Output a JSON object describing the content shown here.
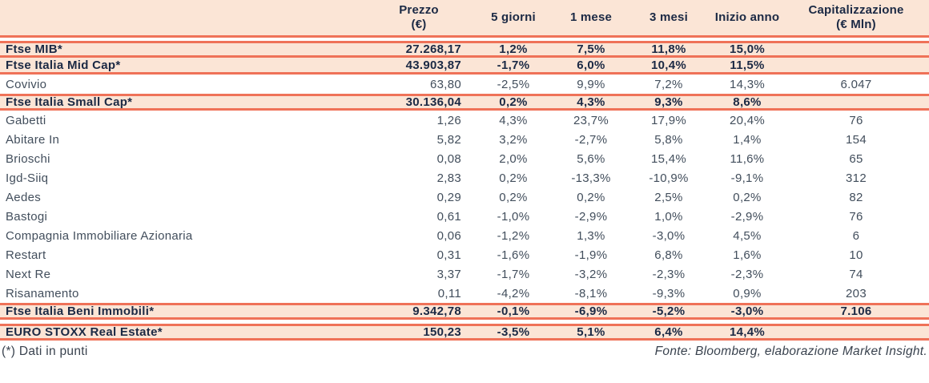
{
  "chart_data": {
    "type": "table",
    "columns": [
      "",
      "Prezzo\n(€)",
      "5 giorni",
      "1 mese",
      "3 mesi",
      "Inizio anno",
      "Capitalizzazione\n(€ Mln)"
    ],
    "rows": [
      {
        "label": "Ftse MIB*",
        "kind": "index",
        "values": [
          "27.268,17",
          "1,2%",
          "7,5%",
          "11,8%",
          "15,0%",
          ""
        ]
      },
      {
        "label": "Ftse Italia Mid Cap*",
        "kind": "index",
        "values": [
          "43.903,87",
          "-1,7%",
          "6,0%",
          "10,4%",
          "11,5%",
          ""
        ]
      },
      {
        "label": "Covivio",
        "kind": "stock",
        "values": [
          "63,80",
          "-2,5%",
          "9,9%",
          "7,2%",
          "14,3%",
          "6.047"
        ]
      },
      {
        "label": "Ftse Italia Small Cap*",
        "kind": "index",
        "values": [
          "30.136,04",
          "0,2%",
          "4,3%",
          "9,3%",
          "8,6%",
          ""
        ]
      },
      {
        "label": "Gabetti",
        "kind": "stock",
        "values": [
          "1,26",
          "4,3%",
          "23,7%",
          "17,9%",
          "20,4%",
          "76"
        ]
      },
      {
        "label": "Abitare In",
        "kind": "stock",
        "values": [
          "5,82",
          "3,2%",
          "-2,7%",
          "5,8%",
          "1,4%",
          "154"
        ]
      },
      {
        "label": "Brioschi",
        "kind": "stock",
        "values": [
          "0,08",
          "2,0%",
          "5,6%",
          "15,4%",
          "11,6%",
          "65"
        ]
      },
      {
        "label": "Igd-Siiq",
        "kind": "stock",
        "values": [
          "2,83",
          "0,2%",
          "-13,3%",
          "-10,9%",
          "-9,1%",
          "312"
        ]
      },
      {
        "label": "Aedes",
        "kind": "stock",
        "values": [
          "0,29",
          "0,2%",
          "0,2%",
          "2,5%",
          "0,2%",
          "82"
        ]
      },
      {
        "label": "Bastogi",
        "kind": "stock",
        "values": [
          "0,61",
          "-1,0%",
          "-2,9%",
          "1,0%",
          "-2,9%",
          "76"
        ]
      },
      {
        "label": "Compagnia Immobiliare Azionaria",
        "kind": "stock",
        "values": [
          "0,06",
          "-1,2%",
          "1,3%",
          "-3,0%",
          "4,5%",
          "6"
        ]
      },
      {
        "label": "Restart",
        "kind": "stock",
        "values": [
          "0,31",
          "-1,6%",
          "-1,9%",
          "6,8%",
          "1,6%",
          "10"
        ]
      },
      {
        "label": "Next Re",
        "kind": "stock",
        "values": [
          "3,37",
          "-1,7%",
          "-3,2%",
          "-2,3%",
          "-2,3%",
          "74"
        ]
      },
      {
        "label": "Risanamento",
        "kind": "stock",
        "values": [
          "0,11",
          "-4,2%",
          "-8,1%",
          "-9,3%",
          "0,9%",
          "203"
        ]
      },
      {
        "label": "Ftse Italia Beni Immobili*",
        "kind": "index",
        "values": [
          "9.342,78",
          "-0,1%",
          "-6,9%",
          "-5,2%",
          "-3,0%",
          "7.106"
        ]
      },
      {
        "label": "EURO STOXX Real Estate*",
        "kind": "index",
        "values": [
          "150,23",
          "-3,5%",
          "5,1%",
          "6,4%",
          "14,4%",
          ""
        ],
        "gap_before": true
      }
    ]
  },
  "footer": {
    "note": "(*) Dati in punti",
    "source": "Fonte: Bloomberg, elaborazione Market Insight."
  },
  "colors": {
    "highlight_bg": "#FBE5D6",
    "rule": "#EF7258",
    "text_strong": "#1B2944",
    "text_regular": "#424E5C"
  }
}
